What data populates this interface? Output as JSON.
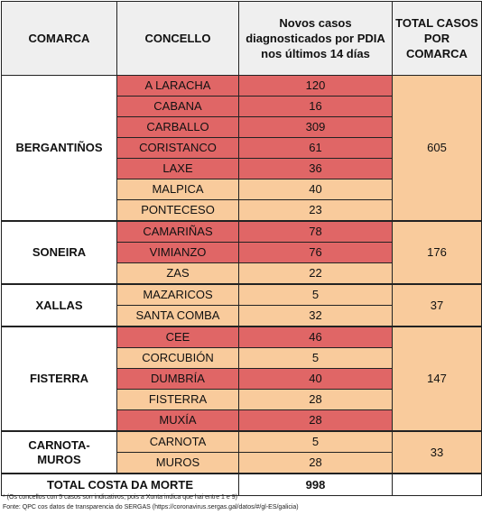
{
  "headers": {
    "comarca": "COMARCA",
    "concello": "CONCELLO",
    "cases": "Novos casos diagnosticados por PDIA nos últimos 14 días",
    "total": "TOTAL CASOS POR COMARCA"
  },
  "colors": {
    "red": "#e06666",
    "peach": "#f9cb9c",
    "header": "#efefef"
  },
  "groups": [
    {
      "comarca": "BERGANTIÑOS",
      "total": "605",
      "rows": [
        {
          "concello": "A LARACHA",
          "cases": "120",
          "level": "red"
        },
        {
          "concello": "CABANA",
          "cases": "16",
          "level": "red"
        },
        {
          "concello": "CARBALLO",
          "cases": "309",
          "level": "red"
        },
        {
          "concello": "CORISTANCO",
          "cases": "61",
          "level": "red"
        },
        {
          "concello": "LAXE",
          "cases": "36",
          "level": "red"
        },
        {
          "concello": "MALPICA",
          "cases": "40",
          "level": "peach"
        },
        {
          "concello": "PONTECESO",
          "cases": "23",
          "level": "peach"
        }
      ]
    },
    {
      "comarca": "SONEIRA",
      "total": "176",
      "rows": [
        {
          "concello": "CAMARIÑAS",
          "cases": "78",
          "level": "red"
        },
        {
          "concello": "VIMIANZO",
          "cases": "76",
          "level": "red"
        },
        {
          "concello": "ZAS",
          "cases": "22",
          "level": "peach"
        }
      ]
    },
    {
      "comarca": "XALLAS",
      "total": "37",
      "rows": [
        {
          "concello": "MAZARICOS",
          "cases": "5",
          "level": "peach"
        },
        {
          "concello": "SANTA COMBA",
          "cases": "32",
          "level": "peach"
        }
      ]
    },
    {
      "comarca": "FISTERRA",
      "total": "147",
      "rows": [
        {
          "concello": "CEE",
          "cases": "46",
          "level": "red"
        },
        {
          "concello": "CORCUBIÓN",
          "cases": "5",
          "level": "peach"
        },
        {
          "concello": "DUMBRÍA",
          "cases": "40",
          "level": "red"
        },
        {
          "concello": "FISTERRA",
          "cases": "28",
          "level": "peach"
        },
        {
          "concello": "MUXÍA",
          "cases": "28",
          "level": "red"
        }
      ]
    },
    {
      "comarca": "CARNOTA-\nMUROS",
      "total": "33",
      "rows": [
        {
          "concello": "CARNOTA",
          "cases": "5",
          "level": "peach"
        },
        {
          "concello": "MUROS",
          "cases": "28",
          "level": "peach"
        }
      ]
    }
  ],
  "grand_total": {
    "label": "TOTAL COSTA DA MORTE",
    "value": "998"
  },
  "footnotes": [
    "* (Os concellos con 5 casos son indicativos, pois a Xunta indica que hai entre 1 e 9)",
    "Fonte: QPC cos datos de transparencia do SERGAS (https://coronavirus.sergas.gal/datos/#/gl-ES/galicia)"
  ]
}
